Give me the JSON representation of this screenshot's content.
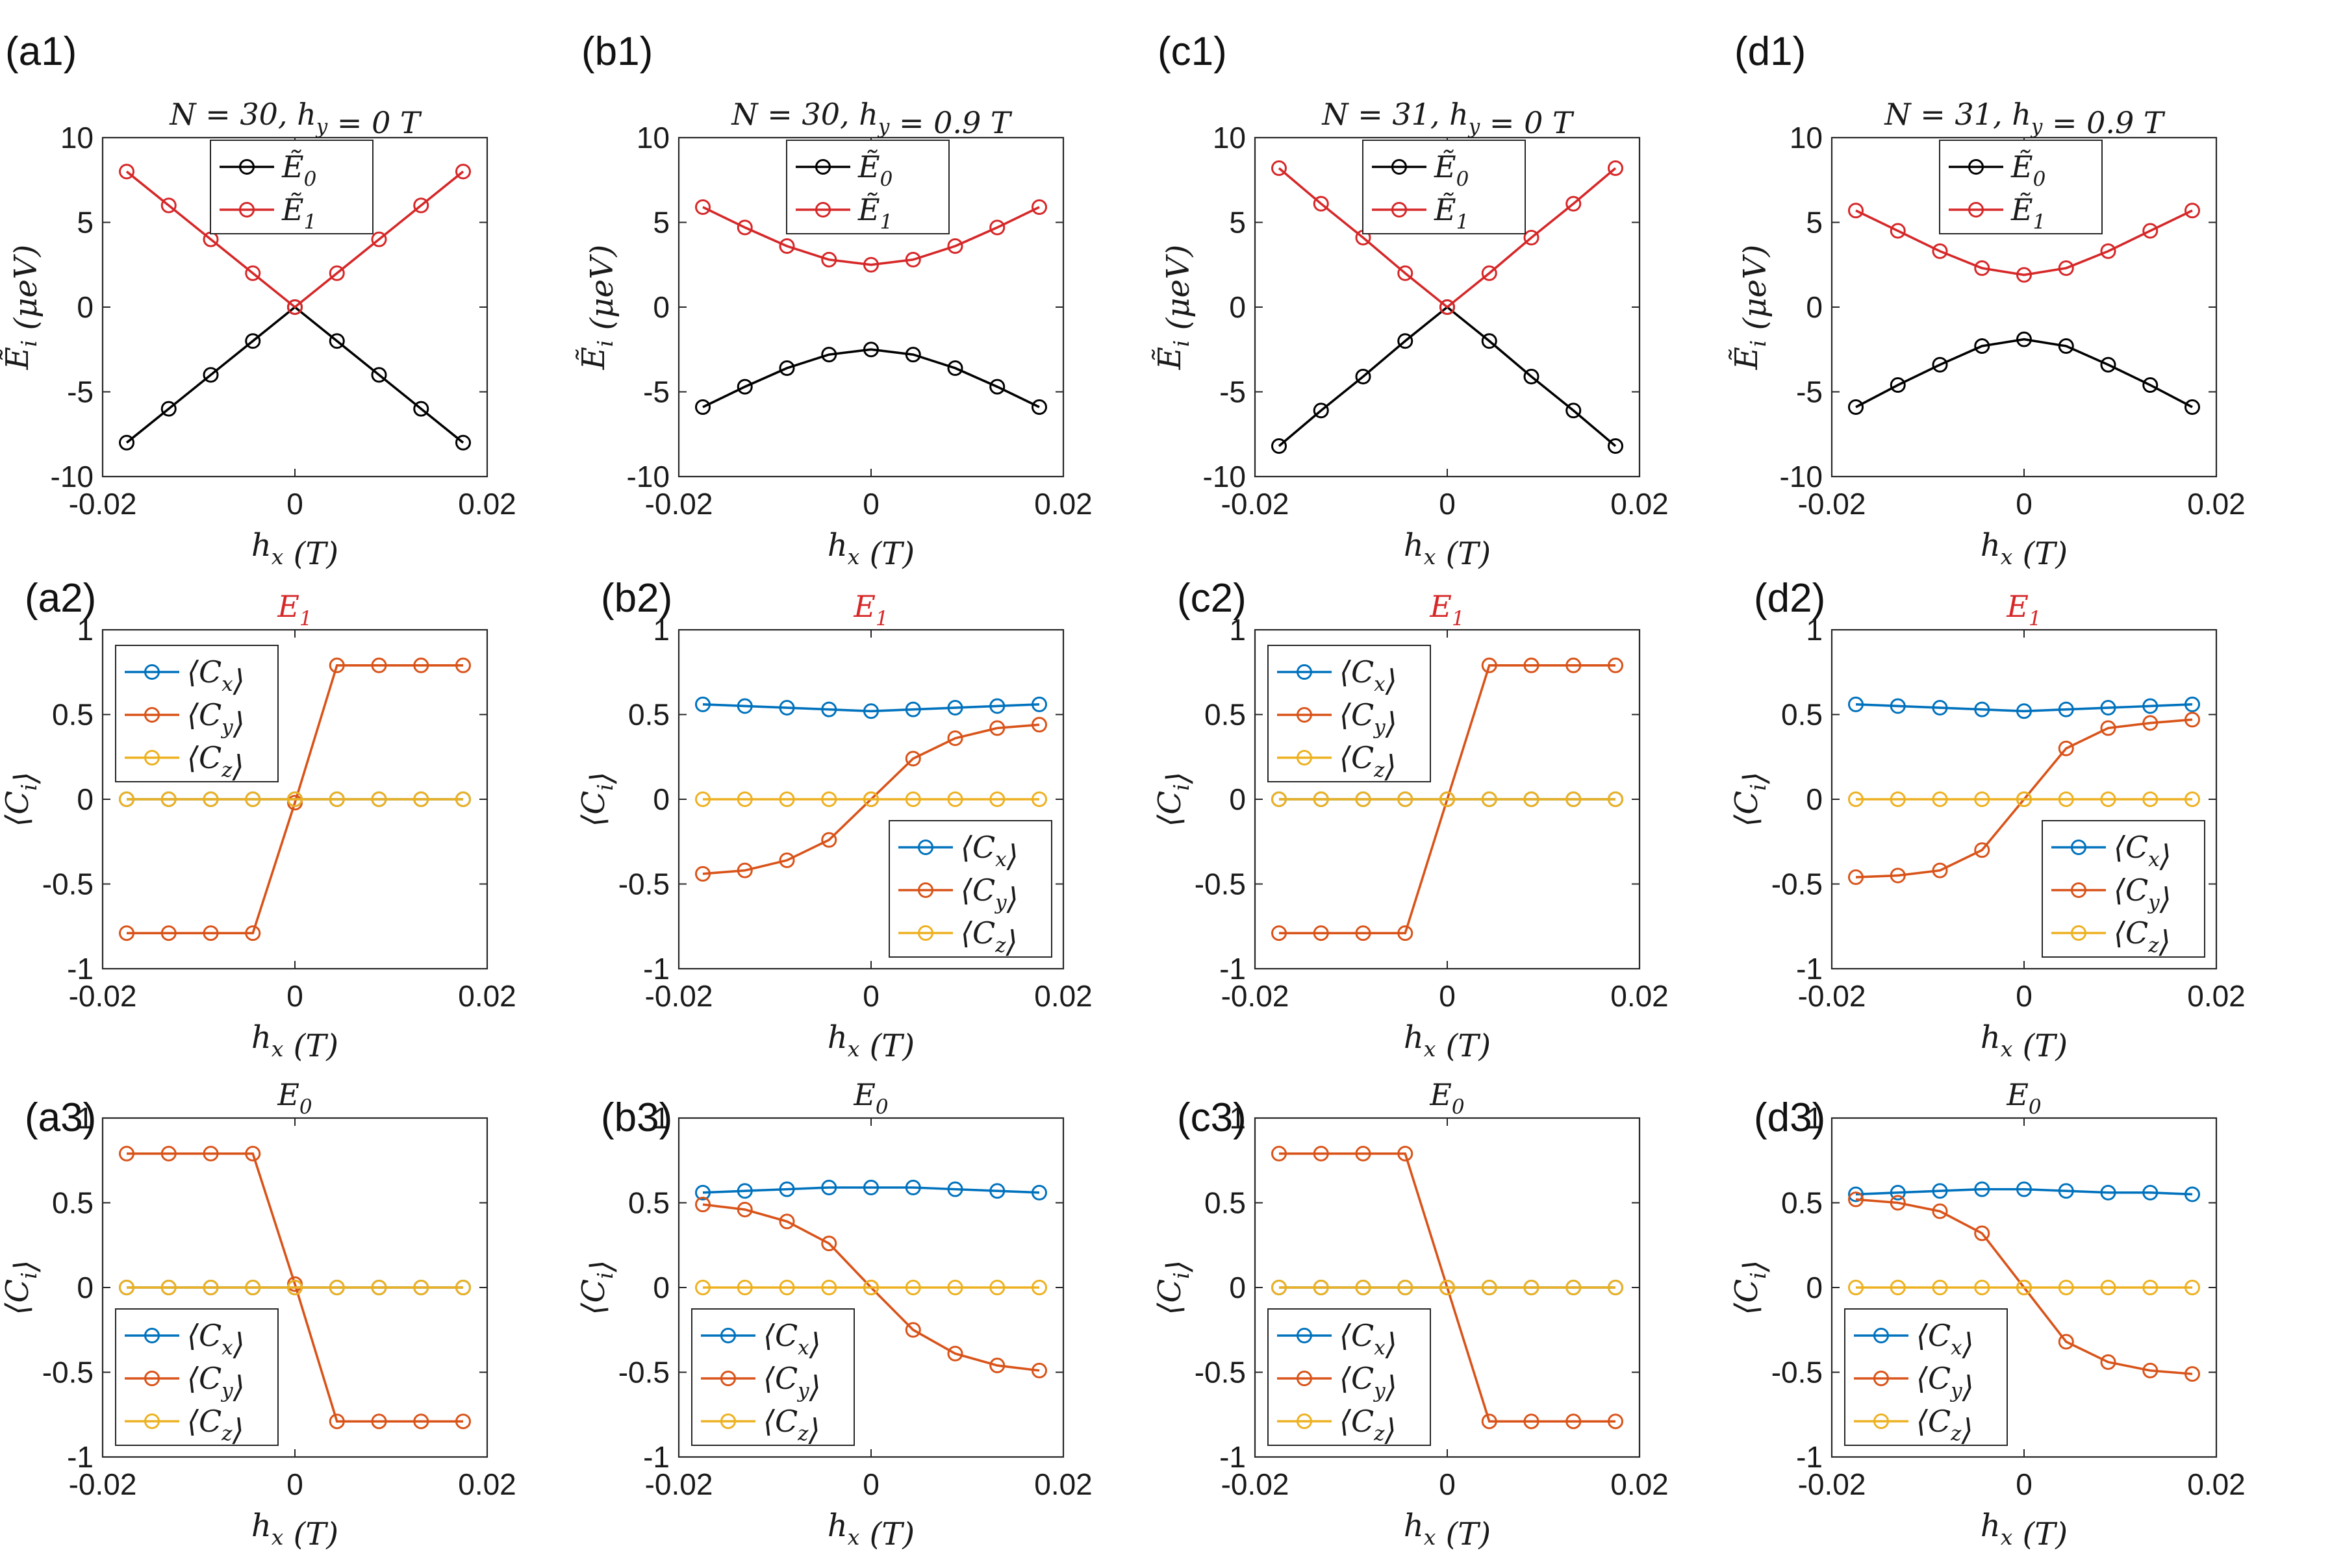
{
  "figure": {
    "colors": {
      "E0": "#000000",
      "E1": "#d62728",
      "Cx": "#0072bd",
      "Cy": "#d95319",
      "Cz": "#edb120",
      "E1_title": "#d62728"
    }
  },
  "chart_data": [
    {
      "type": "line",
      "panel_label": "(a1)",
      "title": "N = 30, h_y = 0 T",
      "xlabel": "h_x (T)",
      "ylabel": "Ẽ_i (μeV)",
      "xlim": [
        -0.02,
        0.02
      ],
      "ylim": [
        -10,
        10
      ],
      "xticks": [
        "-0.02",
        "0",
        "0.02"
      ],
      "yticks": [
        "-10",
        "-5",
        "0",
        "5",
        "10"
      ],
      "legend_position": "top-center",
      "x": [
        -0.0175,
        -0.013125,
        -0.00875,
        -0.004375,
        0,
        0.004375,
        0.00875,
        0.013125,
        0.0175
      ],
      "series": [
        {
          "name": "Ẽ_0",
          "key": "E0",
          "values": [
            -8,
            -6,
            -4,
            -2,
            0,
            -2,
            -4,
            -6,
            -8
          ]
        },
        {
          "name": "Ẽ_1",
          "key": "E1",
          "values": [
            8,
            6,
            4,
            2,
            0,
            2,
            4,
            6,
            8
          ]
        }
      ]
    },
    {
      "type": "line",
      "panel_label": "(b1)",
      "title": "N = 30, h_y = 0.9 T",
      "xlabel": "h_x (T)",
      "ylabel": "Ẽ_i (μeV)",
      "xlim": [
        -0.02,
        0.02
      ],
      "ylim": [
        -10,
        10
      ],
      "xticks": [
        "-0.02",
        "0",
        "0.02"
      ],
      "yticks": [
        "-10",
        "-5",
        "0",
        "5",
        "10"
      ],
      "legend_position": "top-center",
      "x": [
        -0.0175,
        -0.013125,
        -0.00875,
        -0.004375,
        0,
        0.004375,
        0.00875,
        0.013125,
        0.0175
      ],
      "series": [
        {
          "name": "Ẽ_0",
          "key": "E0",
          "values": [
            -5.9,
            -4.7,
            -3.6,
            -2.8,
            -2.5,
            -2.8,
            -3.6,
            -4.7,
            -5.9
          ]
        },
        {
          "name": "Ẽ_1",
          "key": "E1",
          "values": [
            5.9,
            4.7,
            3.6,
            2.8,
            2.5,
            2.8,
            3.6,
            4.7,
            5.9
          ]
        }
      ]
    },
    {
      "type": "line",
      "panel_label": "(c1)",
      "title": "N = 31, h_y = 0 T",
      "xlabel": "h_x (T)",
      "ylabel": "Ẽ_i (μeV)",
      "xlim": [
        -0.02,
        0.02
      ],
      "ylim": [
        -10,
        10
      ],
      "xticks": [
        "-0.02",
        "0",
        "0.02"
      ],
      "yticks": [
        "-10",
        "-5",
        "0",
        "5",
        "10"
      ],
      "legend_position": "top-center",
      "x": [
        -0.0175,
        -0.013125,
        -0.00875,
        -0.004375,
        0,
        0.004375,
        0.00875,
        0.013125,
        0.0175
      ],
      "series": [
        {
          "name": "Ẽ_0",
          "key": "E0",
          "values": [
            -8.2,
            -6.1,
            -4.1,
            -2.0,
            0,
            -2.0,
            -4.1,
            -6.1,
            -8.2
          ]
        },
        {
          "name": "Ẽ_1",
          "key": "E1",
          "values": [
            8.2,
            6.1,
            4.1,
            2.0,
            0,
            2.0,
            4.1,
            6.1,
            8.2
          ]
        }
      ]
    },
    {
      "type": "line",
      "panel_label": "(d1)",
      "title": "N = 31, h_y = 0.9 T",
      "xlabel": "h_x (T)",
      "ylabel": "Ẽ_i (μeV)",
      "xlim": [
        -0.02,
        0.02
      ],
      "ylim": [
        -10,
        10
      ],
      "xticks": [
        "-0.02",
        "0",
        "0.02"
      ],
      "yticks": [
        "-10",
        "-5",
        "0",
        "5",
        "10"
      ],
      "legend_position": "top-center",
      "x": [
        -0.0175,
        -0.013125,
        -0.00875,
        -0.004375,
        0,
        0.004375,
        0.00875,
        0.013125,
        0.0175
      ],
      "series": [
        {
          "name": "Ẽ_0",
          "key": "E0",
          "values": [
            -5.9,
            -4.6,
            -3.4,
            -2.3,
            -1.9,
            -2.3,
            -3.4,
            -4.6,
            -5.9
          ]
        },
        {
          "name": "Ẽ_1",
          "key": "E1",
          "values": [
            5.7,
            4.5,
            3.3,
            2.3,
            1.9,
            2.3,
            3.3,
            4.5,
            5.7
          ]
        }
      ]
    },
    {
      "type": "line",
      "panel_label": "(a2)",
      "title": "E_1",
      "title_color_key": "E1_title",
      "xlabel": "h_x (T)",
      "ylabel": "⟨C_i⟩",
      "xlim": [
        -0.02,
        0.02
      ],
      "ylim": [
        -1,
        1
      ],
      "xticks": [
        "-0.02",
        "0",
        "0.02"
      ],
      "yticks": [
        "-1",
        "-0.5",
        "0",
        "0.5",
        "1"
      ],
      "legend_position": "top-left",
      "x": [
        -0.0175,
        -0.013125,
        -0.00875,
        -0.004375,
        0,
        0.004375,
        0.00875,
        0.013125,
        0.0175
      ],
      "series": [
        {
          "name": "⟨C_x⟩",
          "key": "Cx",
          "values": [
            0,
            0,
            0,
            0,
            0,
            0,
            0,
            0,
            0
          ]
        },
        {
          "name": "⟨C_y⟩",
          "key": "Cy",
          "values": [
            -0.79,
            -0.79,
            -0.79,
            -0.79,
            -0.02,
            0.79,
            0.79,
            0.79,
            0.79
          ]
        },
        {
          "name": "⟨C_z⟩",
          "key": "Cz",
          "values": [
            0,
            0,
            0,
            0,
            0,
            0,
            0,
            0,
            0
          ]
        }
      ]
    },
    {
      "type": "line",
      "panel_label": "(b2)",
      "title": "E_1",
      "title_color_key": "E1_title",
      "xlabel": "h_x (T)",
      "ylabel": "⟨C_i⟩",
      "xlim": [
        -0.02,
        0.02
      ],
      "ylim": [
        -1,
        1
      ],
      "xticks": [
        "-0.02",
        "0",
        "0.02"
      ],
      "yticks": [
        "-1",
        "-0.5",
        "0",
        "0.5",
        "1"
      ],
      "legend_position": "bottom-right",
      "x": [
        -0.0175,
        -0.013125,
        -0.00875,
        -0.004375,
        0,
        0.004375,
        0.00875,
        0.013125,
        0.0175
      ],
      "series": [
        {
          "name": "⟨C_x⟩",
          "key": "Cx",
          "values": [
            0.56,
            0.55,
            0.54,
            0.53,
            0.52,
            0.53,
            0.54,
            0.55,
            0.56
          ]
        },
        {
          "name": "⟨C_y⟩",
          "key": "Cy",
          "values": [
            -0.44,
            -0.42,
            -0.36,
            -0.24,
            0,
            0.24,
            0.36,
            0.42,
            0.44
          ]
        },
        {
          "name": "⟨C_z⟩",
          "key": "Cz",
          "values": [
            0,
            0,
            0,
            0,
            0,
            0,
            0,
            0,
            0
          ]
        }
      ]
    },
    {
      "type": "line",
      "panel_label": "(c2)",
      "title": "E_1",
      "title_color_key": "E1_title",
      "xlabel": "h_x (T)",
      "ylabel": "⟨C_i⟩",
      "xlim": [
        -0.02,
        0.02
      ],
      "ylim": [
        -1,
        1
      ],
      "xticks": [
        "-0.02",
        "0",
        "0.02"
      ],
      "yticks": [
        "-1",
        "-0.5",
        "0",
        "0.5",
        "1"
      ],
      "legend_position": "top-left",
      "x": [
        -0.0175,
        -0.013125,
        -0.00875,
        -0.004375,
        0,
        0.004375,
        0.00875,
        0.013125,
        0.0175
      ],
      "series": [
        {
          "name": "⟨C_x⟩",
          "key": "Cx",
          "values": [
            0,
            0,
            0,
            0,
            0,
            0,
            0,
            0,
            0
          ]
        },
        {
          "name": "⟨C_y⟩",
          "key": "Cy",
          "values": [
            -0.79,
            -0.79,
            -0.79,
            -0.79,
            0,
            0.79,
            0.79,
            0.79,
            0.79
          ]
        },
        {
          "name": "⟨C_z⟩",
          "key": "Cz",
          "values": [
            0,
            0,
            0,
            0,
            0,
            0,
            0,
            0,
            0
          ]
        }
      ]
    },
    {
      "type": "line",
      "panel_label": "(d2)",
      "title": "E_1",
      "title_color_key": "E1_title",
      "xlabel": "h_x (T)",
      "ylabel": "⟨C_i⟩",
      "xlim": [
        -0.02,
        0.02
      ],
      "ylim": [
        -1,
        1
      ],
      "xticks": [
        "-0.02",
        "0",
        "0.02"
      ],
      "yticks": [
        "-1",
        "-0.5",
        "0",
        "0.5",
        "1"
      ],
      "legend_position": "bottom-right",
      "x": [
        -0.0175,
        -0.013125,
        -0.00875,
        -0.004375,
        0,
        0.004375,
        0.00875,
        0.013125,
        0.0175
      ],
      "series": [
        {
          "name": "⟨C_x⟩",
          "key": "Cx",
          "values": [
            0.56,
            0.55,
            0.54,
            0.53,
            0.52,
            0.53,
            0.54,
            0.55,
            0.56
          ]
        },
        {
          "name": "⟨C_y⟩",
          "key": "Cy",
          "values": [
            -0.46,
            -0.45,
            -0.42,
            -0.3,
            0,
            0.3,
            0.42,
            0.45,
            0.47
          ]
        },
        {
          "name": "⟨C_z⟩",
          "key": "Cz",
          "values": [
            0,
            0,
            0,
            0,
            0,
            0,
            0,
            0,
            0
          ]
        }
      ]
    },
    {
      "type": "line",
      "panel_label": "(a3)",
      "title": "E_0",
      "xlabel": "h_x (T)",
      "ylabel": "⟨C_i⟩",
      "xlim": [
        -0.02,
        0.02
      ],
      "ylim": [
        -1,
        1
      ],
      "xticks": [
        "-0.02",
        "0",
        "0.02"
      ],
      "yticks": [
        "-1",
        "-0.5",
        "0",
        "0.5",
        "1"
      ],
      "legend_position": "bottom-left",
      "x": [
        -0.0175,
        -0.013125,
        -0.00875,
        -0.004375,
        0,
        0.004375,
        0.00875,
        0.013125,
        0.0175
      ],
      "series": [
        {
          "name": "⟨C_x⟩",
          "key": "Cx",
          "values": [
            0,
            0,
            0,
            0,
            0,
            0,
            0,
            0,
            0
          ]
        },
        {
          "name": "⟨C_y⟩",
          "key": "Cy",
          "values": [
            0.79,
            0.79,
            0.79,
            0.79,
            0.02,
            -0.79,
            -0.79,
            -0.79,
            -0.79
          ]
        },
        {
          "name": "⟨C_z⟩",
          "key": "Cz",
          "values": [
            0,
            0,
            0,
            0,
            0,
            0,
            0,
            0,
            0
          ]
        }
      ]
    },
    {
      "type": "line",
      "panel_label": "(b3)",
      "title": "E_0",
      "xlabel": "h_x (T)",
      "ylabel": "⟨C_i⟩",
      "xlim": [
        -0.02,
        0.02
      ],
      "ylim": [
        -1,
        1
      ],
      "xticks": [
        "-0.02",
        "0",
        "0.02"
      ],
      "yticks": [
        "-1",
        "-0.5",
        "0",
        "0.5",
        "1"
      ],
      "legend_position": "bottom-left",
      "x": [
        -0.0175,
        -0.013125,
        -0.00875,
        -0.004375,
        0,
        0.004375,
        0.00875,
        0.013125,
        0.0175
      ],
      "series": [
        {
          "name": "⟨C_x⟩",
          "key": "Cx",
          "values": [
            0.56,
            0.57,
            0.58,
            0.59,
            0.59,
            0.59,
            0.58,
            0.57,
            0.56
          ]
        },
        {
          "name": "⟨C_y⟩",
          "key": "Cy",
          "values": [
            0.49,
            0.46,
            0.39,
            0.26,
            0,
            -0.25,
            -0.39,
            -0.46,
            -0.49
          ]
        },
        {
          "name": "⟨C_z⟩",
          "key": "Cz",
          "values": [
            0,
            0,
            0,
            0,
            0,
            0,
            0,
            0,
            0
          ]
        }
      ]
    },
    {
      "type": "line",
      "panel_label": "(c3)",
      "title": "E_0",
      "xlabel": "h_x (T)",
      "ylabel": "⟨C_i⟩",
      "xlim": [
        -0.02,
        0.02
      ],
      "ylim": [
        -1,
        1
      ],
      "xticks": [
        "-0.02",
        "0",
        "0.02"
      ],
      "yticks": [
        "-1",
        "-0.5",
        "0",
        "0.5",
        "1"
      ],
      "legend_position": "bottom-left",
      "x": [
        -0.0175,
        -0.013125,
        -0.00875,
        -0.004375,
        0,
        0.004375,
        0.00875,
        0.013125,
        0.0175
      ],
      "series": [
        {
          "name": "⟨C_x⟩",
          "key": "Cx",
          "values": [
            0,
            0,
            0,
            0,
            0,
            0,
            0,
            0,
            0
          ]
        },
        {
          "name": "⟨C_y⟩",
          "key": "Cy",
          "values": [
            0.79,
            0.79,
            0.79,
            0.79,
            0,
            -0.79,
            -0.79,
            -0.79,
            -0.79
          ]
        },
        {
          "name": "⟨C_z⟩",
          "key": "Cz",
          "values": [
            0,
            0,
            0,
            0,
            0,
            0,
            0,
            0,
            0
          ]
        }
      ]
    },
    {
      "type": "line",
      "panel_label": "(d3)",
      "title": "E_0",
      "xlabel": "h_x (T)",
      "ylabel": "⟨C_i⟩",
      "xlim": [
        -0.02,
        0.02
      ],
      "ylim": [
        -1,
        1
      ],
      "xticks": [
        "-0.02",
        "0",
        "0.02"
      ],
      "yticks": [
        "-1",
        "-0.5",
        "0",
        "0.5",
        "1"
      ],
      "legend_position": "bottom-left",
      "x": [
        -0.0175,
        -0.013125,
        -0.00875,
        -0.004375,
        0,
        0.004375,
        0.00875,
        0.013125,
        0.0175
      ],
      "series": [
        {
          "name": "⟨C_x⟩",
          "key": "Cx",
          "values": [
            0.55,
            0.56,
            0.57,
            0.58,
            0.58,
            0.57,
            0.56,
            0.56,
            0.55
          ]
        },
        {
          "name": "⟨C_y⟩",
          "key": "Cy",
          "values": [
            0.52,
            0.5,
            0.45,
            0.32,
            0,
            -0.32,
            -0.44,
            -0.49,
            -0.51
          ]
        },
        {
          "name": "⟨C_z⟩",
          "key": "Cz",
          "values": [
            0,
            0,
            0,
            0,
            0,
            0,
            0,
            0,
            0
          ]
        }
      ]
    }
  ]
}
